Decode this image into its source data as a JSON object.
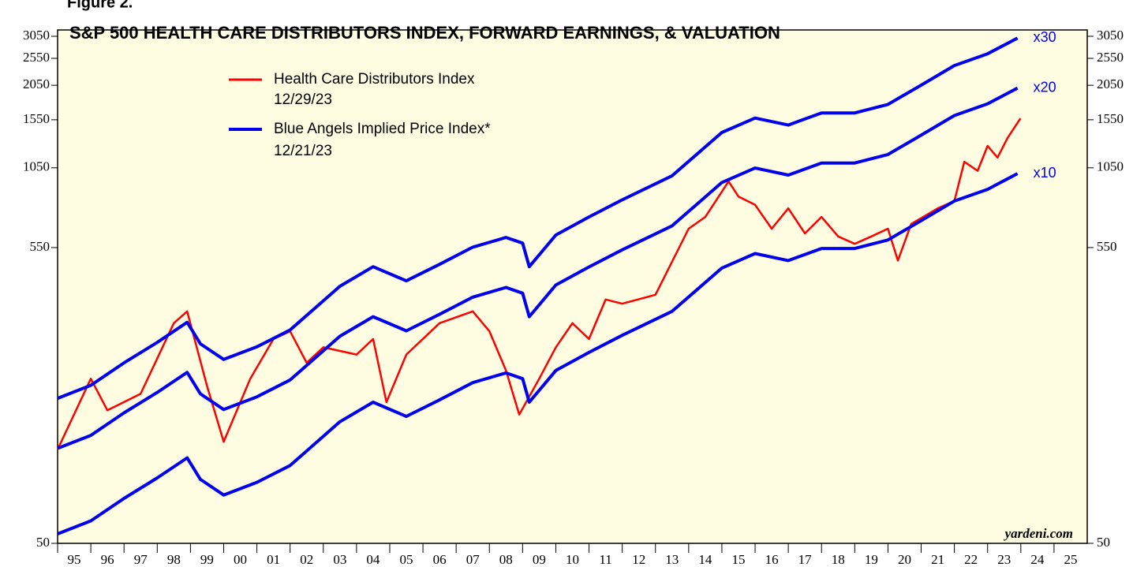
{
  "chart_data": {
    "type": "line",
    "figure_label": "Figure 2.",
    "title": "S&P 500 HEALTH CARE DISTRIBUTORS INDEX, FORWARD EARNINGS, & VALUATION",
    "source": "yardeni.com",
    "log_scale": true,
    "ylim": [
      50,
      3050
    ],
    "yticks": [
      50,
      550,
      1050,
      1550,
      2050,
      2550,
      3050
    ],
    "xlim": [
      1995,
      2026
    ],
    "xticks": [
      {
        "value": 1995,
        "label": "95"
      },
      {
        "value": 1996,
        "label": "96"
      },
      {
        "value": 1997,
        "label": "97"
      },
      {
        "value": 1998,
        "label": "98"
      },
      {
        "value": 1999,
        "label": "99"
      },
      {
        "value": 2000,
        "label": "00"
      },
      {
        "value": 2001,
        "label": "01"
      },
      {
        "value": 2002,
        "label": "02"
      },
      {
        "value": 2003,
        "label": "03"
      },
      {
        "value": 2004,
        "label": "04"
      },
      {
        "value": 2005,
        "label": "05"
      },
      {
        "value": 2006,
        "label": "06"
      },
      {
        "value": 2007,
        "label": "07"
      },
      {
        "value": 2008,
        "label": "08"
      },
      {
        "value": 2009,
        "label": "09"
      },
      {
        "value": 2010,
        "label": "10"
      },
      {
        "value": 2011,
        "label": "11"
      },
      {
        "value": 2012,
        "label": "12"
      },
      {
        "value": 2013,
        "label": "13"
      },
      {
        "value": 2014,
        "label": "14"
      },
      {
        "value": 2015,
        "label": "15"
      },
      {
        "value": 2016,
        "label": "16"
      },
      {
        "value": 2017,
        "label": "17"
      },
      {
        "value": 2018,
        "label": "18"
      },
      {
        "value": 2019,
        "label": "19"
      },
      {
        "value": 2020,
        "label": "20"
      },
      {
        "value": 2021,
        "label": "21"
      },
      {
        "value": 2022,
        "label": "22"
      },
      {
        "value": 2023,
        "label": "23"
      },
      {
        "value": 2024,
        "label": "24"
      },
      {
        "value": 2025,
        "label": "25"
      }
    ],
    "legend": [
      {
        "name": "Health Care Distributors Index",
        "date": "12/29/23",
        "color": "#ff0000"
      },
      {
        "name": "Blue Angels Implied Price Index*",
        "date": "12/21/23",
        "color": "#0000ee"
      }
    ],
    "series": [
      {
        "name": "Health Care Distributors Index",
        "color": "#ff0000",
        "x": [
          1995,
          1996,
          1996.5,
          1997.5,
          1998.5,
          1998.9,
          1999.5,
          2000,
          2000.8,
          2001.5,
          2002,
          2002.5,
          2003,
          2004,
          2004.5,
          2004.9,
          2005.5,
          2006.5,
          2007.5,
          2008,
          2008.5,
          2008.9,
          2009.5,
          2010,
          2010.5,
          2011,
          2011.5,
          2012,
          2013,
          2014,
          2014.5,
          2015.2,
          2015.5,
          2016,
          2016.5,
          2017,
          2017.5,
          2018,
          2018.5,
          2019,
          2019.5,
          2020,
          2020.3,
          2020.7,
          2021.5,
          2022,
          2022.3,
          2022.7,
          2023,
          2023.3,
          2023.6,
          2023.99
        ],
        "values": [
          107,
          190,
          147,
          168,
          298,
          328,
          179,
          114,
          190,
          262,
          279,
          216,
          245,
          231,
          262,
          157,
          231,
          298,
          328,
          279,
          203,
          142,
          190,
          245,
          298,
          262,
          361,
          349,
          375,
          641,
          705,
          940,
          832,
          778,
          641,
          756,
          617,
          705,
          602,
          567,
          602,
          641,
          495,
          666,
          756,
          802,
          1103,
          1025,
          1254,
          1141,
          1338,
          1568
        ]
      },
      {
        "name": "x30",
        "color": "#0000ee",
        "x": [
          1995,
          1996,
          1997,
          1998,
          1998.9,
          1999.3,
          2000,
          2001,
          2002,
          2003.5,
          2004.5,
          2005.5,
          2006.5,
          2007.5,
          2008.5,
          2009,
          2009.2,
          2010,
          2011,
          2012,
          2013.5,
          2015,
          2016,
          2017,
          2018,
          2019,
          2020,
          2021,
          2022,
          2023,
          2023.9
        ],
        "values": [
          162,
          180,
          216,
          255,
          300,
          252,
          222,
          246,
          282,
          402,
          471,
          420,
          480,
          552,
          597,
          570,
          471,
          609,
          705,
          810,
          984,
          1398,
          1572,
          1485,
          1638,
          1638,
          1755,
          2052,
          2406,
          2646,
          3006
        ]
      },
      {
        "name": "x20",
        "color": "#0000ee",
        "x": [
          1995,
          1996,
          1997,
          1998,
          1998.9,
          1999.3,
          2000,
          2001,
          2002,
          2003.5,
          2004.5,
          2005.5,
          2006.5,
          2007.5,
          2008.5,
          2009,
          2009.2,
          2010,
          2011,
          2012,
          2013.5,
          2015,
          2016,
          2017,
          2018,
          2019,
          2020,
          2021,
          2022,
          2023,
          2023.9
        ],
        "values": [
          108,
          120,
          144,
          170,
          200,
          168,
          148,
          164,
          188,
          268,
          314,
          280,
          320,
          368,
          398,
          380,
          314,
          406,
          470,
          540,
          656,
          932,
          1048,
          990,
          1092,
          1092,
          1170,
          1368,
          1604,
          1764,
          2004
        ]
      },
      {
        "name": "x10",
        "color": "#0000ee",
        "x": [
          1995,
          1996,
          1997,
          1998,
          1998.9,
          1999.3,
          2000,
          2001,
          2002,
          2003.5,
          2004.5,
          2005.5,
          2006.5,
          2007.5,
          2008.5,
          2009,
          2009.2,
          2010,
          2011,
          2012,
          2013.5,
          2015,
          2016,
          2017,
          2018,
          2019,
          2020,
          2021,
          2022,
          2023,
          2023.9
        ],
        "values": [
          54,
          60,
          72,
          85,
          100,
          84,
          74,
          82,
          94,
          134,
          157,
          140,
          160,
          184,
          199,
          190,
          157,
          203,
          235,
          270,
          328,
          466,
          524,
          495,
          546,
          546,
          585,
          684,
          802,
          882,
          1002
        ]
      }
    ]
  }
}
